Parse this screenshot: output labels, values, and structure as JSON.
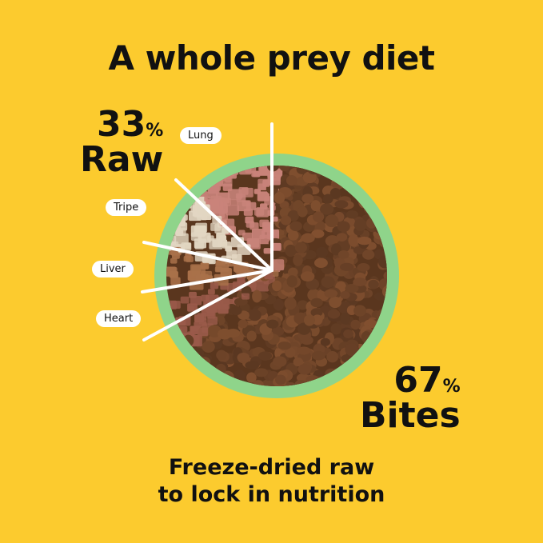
{
  "title": "A whole prey diet",
  "raw": {
    "percent": "33",
    "unit": "%",
    "label": "Raw"
  },
  "bites": {
    "percent": "67",
    "unit": "%",
    "label": "Bites"
  },
  "segments": [
    "Lung",
    "Tripe",
    "Liver",
    "Heart"
  ],
  "subtitle": [
    "Freeze-dried raw",
    "to lock in nutrition"
  ],
  "colors": {
    "background": "#fccb2e",
    "bowl": "#8fd48a",
    "kibble": "#6b4326",
    "lung": "#c9837a",
    "tripe": "#e2d6c2",
    "liver": "#a9714a",
    "heart": "#9a5a4a"
  }
}
